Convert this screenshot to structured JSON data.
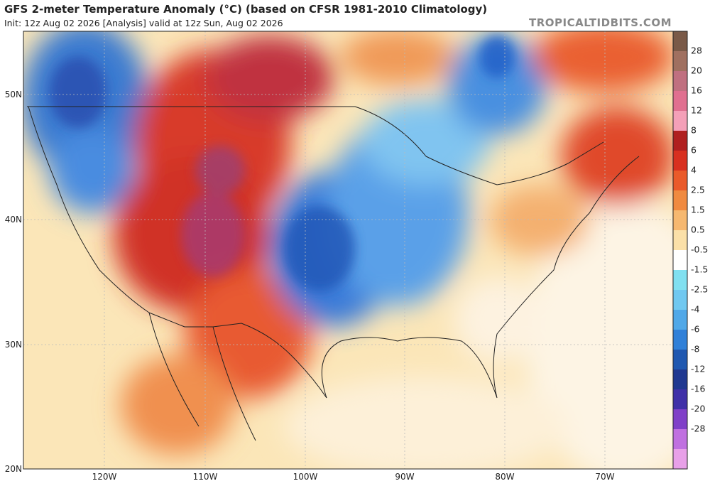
{
  "header": {
    "title": "GFS 2-meter Temperature Anomaly (°C) (based on CFSR 1981-2010 Climatology)",
    "subtitle": "Init: 12z Aug 02 2026   [Analysis]   valid at 12z Sun, Aug 02 2026",
    "watermark": "TROPICALTIDBITS.COM"
  },
  "map": {
    "latitude_labels": [
      "50N",
      "40N",
      "30N",
      "20N"
    ],
    "longitude_labels": [
      "120W",
      "110W",
      "100W",
      "90W",
      "80W",
      "70W"
    ]
  },
  "colorbar": {
    "labels": [
      28,
      20,
      16,
      12,
      8,
      6,
      4,
      2.5,
      1.5,
      0.5,
      -0.5,
      -1.5,
      -2.5,
      -4,
      -6,
      -8,
      -12,
      -16,
      -20,
      -28
    ],
    "colors": [
      "#7a5a48",
      "#a07060",
      "#c07080",
      "#e07090",
      "#f4a0b8",
      "#b02020",
      "#d83020",
      "#ea5a2a",
      "#f08a40",
      "#f6b870",
      "#fbe0a8",
      "#ffffff",
      "#80e0f0",
      "#70c8f0",
      "#50a8e8",
      "#3080d8",
      "#2058b0",
      "#203890",
      "#4030a8",
      "#8040c8",
      "#c070e0",
      "#e8a0e8"
    ]
  }
}
